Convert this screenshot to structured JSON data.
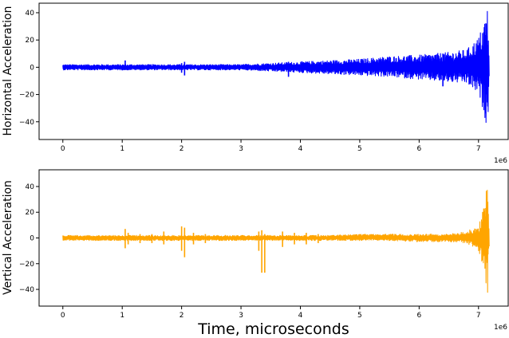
{
  "chart_data": [
    {
      "type": "line",
      "ylabel": "Horizontal Acceleration",
      "offset_text": "1e6",
      "series": [
        {
          "color": "#0000ff",
          "envelope": [
            {
              "x": 0.0,
              "low": -2,
              "high": 2
            },
            {
              "x": 0.5,
              "low": -2,
              "high": 2
            },
            {
              "x": 1.0,
              "low": -2,
              "high": 2
            },
            {
              "x": 1.5,
              "low": -2,
              "high": 2
            },
            {
              "x": 2.0,
              "low": -2,
              "high": 2
            },
            {
              "x": 2.5,
              "low": -2,
              "high": 2
            },
            {
              "x": 3.0,
              "low": -2,
              "high": 2
            },
            {
              "x": 3.5,
              "low": -3,
              "high": 3
            },
            {
              "x": 4.0,
              "low": -4,
              "high": 4
            },
            {
              "x": 4.5,
              "low": -5,
              "high": 5
            },
            {
              "x": 5.0,
              "low": -6,
              "high": 6
            },
            {
              "x": 5.5,
              "low": -7,
              "high": 8
            },
            {
              "x": 6.0,
              "low": -9,
              "high": 9
            },
            {
              "x": 6.5,
              "low": -11,
              "high": 11
            },
            {
              "x": 6.8,
              "low": -12,
              "high": 13
            },
            {
              "x": 7.0,
              "low": -20,
              "high": 22
            },
            {
              "x": 7.1,
              "low": -35,
              "high": 35
            },
            {
              "x": 7.15,
              "low": -48,
              "high": 45
            },
            {
              "x": 7.18,
              "low": -10,
              "high": 10
            }
          ],
          "spikes": [
            {
              "x": 1.05,
              "low": -2,
              "high": 5
            },
            {
              "x": 2.0,
              "low": -4,
              "high": 3
            },
            {
              "x": 2.05,
              "low": -6,
              "high": 4
            },
            {
              "x": 3.8,
              "low": -7,
              "high": 4
            },
            {
              "x": 6.4,
              "low": -14,
              "high": 10
            }
          ]
        }
      ],
      "xlim": [
        -0.4,
        7.5
      ],
      "ylim": [
        -53,
        47
      ],
      "xticks": [
        0,
        1,
        2,
        3,
        4,
        5,
        6,
        7
      ],
      "xtick_labels": [
        "0",
        "1",
        "2",
        "3",
        "4",
        "5",
        "6",
        "7"
      ],
      "yticks": [
        -40,
        -20,
        0,
        20,
        40
      ],
      "ytick_labels": [
        "−40",
        "−20",
        "0",
        "20",
        "40"
      ]
    },
    {
      "type": "line",
      "ylabel": "Vertical Acceleration",
      "offset_text": "1e6",
      "xlabel": "Time, microseconds",
      "series": [
        {
          "color": "#ffa500",
          "envelope": [
            {
              "x": 0.0,
              "low": -2,
              "high": 2
            },
            {
              "x": 0.5,
              "low": -2,
              "high": 2
            },
            {
              "x": 1.0,
              "low": -2,
              "high": 2
            },
            {
              "x": 1.5,
              "low": -2,
              "high": 2
            },
            {
              "x": 2.0,
              "low": -2,
              "high": 2
            },
            {
              "x": 2.5,
              "low": -2,
              "high": 2
            },
            {
              "x": 3.0,
              "low": -2,
              "high": 2
            },
            {
              "x": 3.5,
              "low": -2,
              "high": 2
            },
            {
              "x": 4.0,
              "low": -2,
              "high": 2
            },
            {
              "x": 4.5,
              "low": -2,
              "high": 2
            },
            {
              "x": 5.0,
              "low": -2,
              "high": 3
            },
            {
              "x": 5.5,
              "low": -2,
              "high": 3
            },
            {
              "x": 6.0,
              "low": -3,
              "high": 3
            },
            {
              "x": 6.5,
              "low": -3,
              "high": 3
            },
            {
              "x": 6.8,
              "low": -4,
              "high": 5
            },
            {
              "x": 7.0,
              "low": -10,
              "high": 10
            },
            {
              "x": 7.1,
              "low": -25,
              "high": 25
            },
            {
              "x": 7.15,
              "low": -47,
              "high": 47
            },
            {
              "x": 7.18,
              "low": -10,
              "high": 10
            }
          ],
          "spikes": [
            {
              "x": 1.05,
              "low": -8,
              "high": 7
            },
            {
              "x": 1.1,
              "low": -5,
              "high": 4
            },
            {
              "x": 1.3,
              "low": -4,
              "high": 3
            },
            {
              "x": 1.5,
              "low": -4,
              "high": 3
            },
            {
              "x": 1.7,
              "low": -5,
              "high": 5
            },
            {
              "x": 2.0,
              "low": -10,
              "high": 9
            },
            {
              "x": 2.05,
              "low": -15,
              "high": 8
            },
            {
              "x": 2.2,
              "low": -5,
              "high": 4
            },
            {
              "x": 2.4,
              "low": -4,
              "high": 3
            },
            {
              "x": 3.3,
              "low": -10,
              "high": 5
            },
            {
              "x": 3.35,
              "low": -27,
              "high": 6
            },
            {
              "x": 3.4,
              "low": -27,
              "high": 3
            },
            {
              "x": 3.7,
              "low": -7,
              "high": 5
            },
            {
              "x": 3.9,
              "low": -5,
              "high": 4
            },
            {
              "x": 4.1,
              "low": -5,
              "high": 4
            },
            {
              "x": 4.3,
              "low": -4,
              "high": 3
            }
          ]
        }
      ],
      "xlim": [
        -0.4,
        7.5
      ],
      "ylim": [
        -53,
        53
      ],
      "xticks": [
        0,
        1,
        2,
        3,
        4,
        5,
        6,
        7
      ],
      "xtick_labels": [
        "0",
        "1",
        "2",
        "3",
        "4",
        "5",
        "6",
        "7"
      ],
      "yticks": [
        -40,
        -20,
        0,
        20,
        40
      ],
      "ytick_labels": [
        "−40",
        "−20",
        "0",
        "20",
        "40"
      ]
    }
  ]
}
